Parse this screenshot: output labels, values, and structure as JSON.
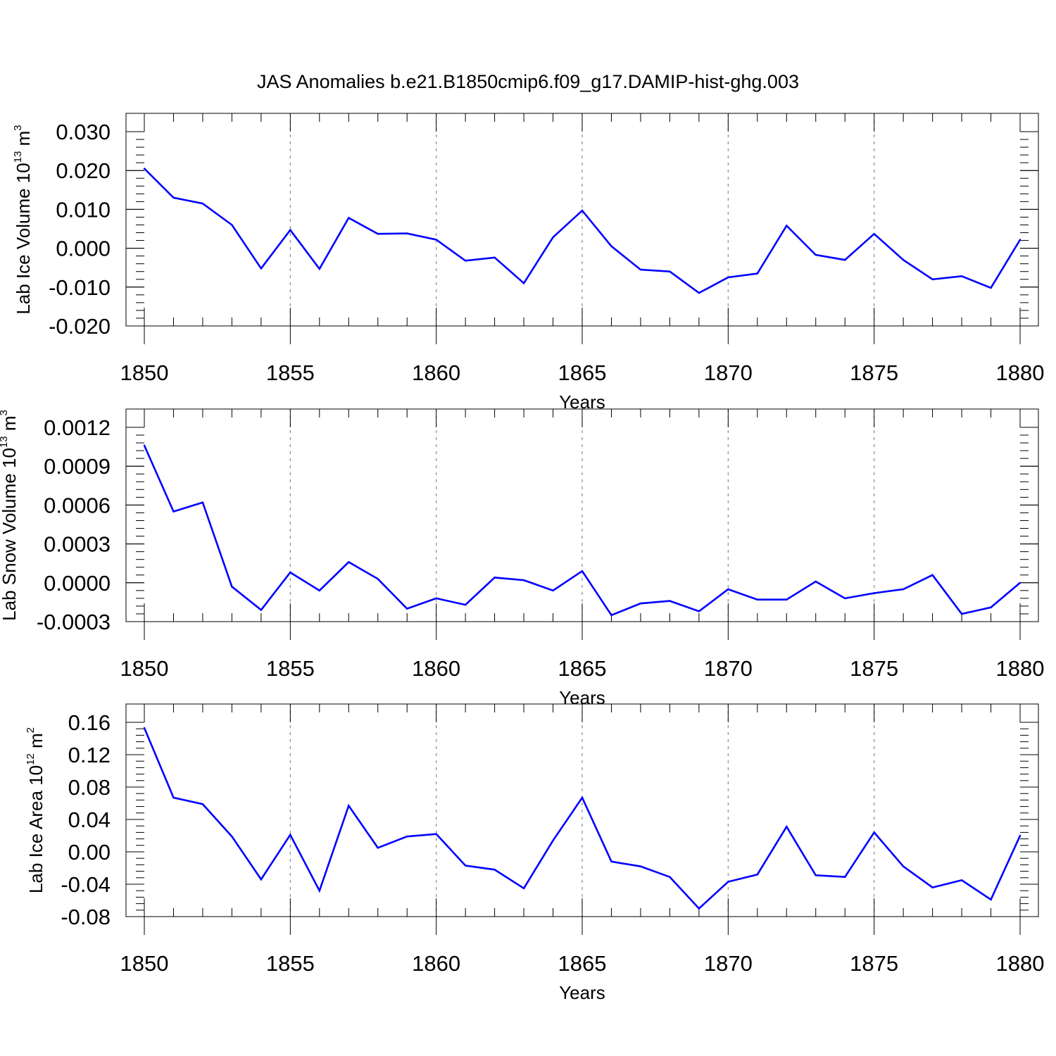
{
  "title": "JAS Anomalies b.e21.B1850cmip6.f09_g17.DAMIP-hist-ghg.003",
  "line_color": "#0000ff",
  "grid_color": "#888888",
  "chart_data": [
    {
      "type": "line",
      "ylabel": "Lab Ice Volume 10",
      "ylabel_unit_base": "m",
      "ylabel_exp": "13",
      "ylabel_unit_exp": "3",
      "xlabel": "Years",
      "xlim": [
        1850,
        1880
      ],
      "ylim": [
        -0.02,
        0.03
      ],
      "x_ticks": [
        1850,
        1855,
        1860,
        1865,
        1870,
        1875,
        1880
      ],
      "x_tick_labels": [
        "1850",
        "1855",
        "1860",
        "1865",
        "1870",
        "1875",
        "1880"
      ],
      "y_ticks": [
        -0.02,
        -0.01,
        0.0,
        0.01,
        0.02,
        0.03
      ],
      "y_tick_labels": [
        "-0.020",
        "-0.010",
        "0.000",
        "0.010",
        "0.020",
        "0.030"
      ],
      "grid": "vertical dashed at major x ticks",
      "x": [
        1850,
        1851,
        1852,
        1853,
        1854,
        1855,
        1856,
        1857,
        1858,
        1859,
        1860,
        1861,
        1862,
        1863,
        1864,
        1865,
        1866,
        1867,
        1868,
        1869,
        1870,
        1871,
        1872,
        1873,
        1874,
        1875,
        1876,
        1877,
        1878,
        1879,
        1880
      ],
      "values": [
        0.0205,
        0.013,
        0.0115,
        0.006,
        -0.0052,
        0.0047,
        -0.0053,
        0.0078,
        0.0037,
        0.0038,
        0.0022,
        -0.0032,
        -0.0024,
        -0.009,
        0.0028,
        0.0097,
        0.0005,
        -0.0055,
        -0.006,
        -0.0115,
        -0.0075,
        -0.0065,
        0.0058,
        -0.0017,
        -0.003,
        0.0037,
        -0.003,
        -0.008,
        -0.0072,
        -0.0102,
        0.0022
      ]
    },
    {
      "type": "line",
      "ylabel": "Lab Snow Volume 10",
      "ylabel_unit_base": "m",
      "ylabel_exp": "13",
      "ylabel_unit_exp": "3",
      "xlabel": "Years",
      "xlim": [
        1850,
        1880
      ],
      "ylim": [
        -0.0003,
        0.0012
      ],
      "x_ticks": [
        1850,
        1855,
        1860,
        1865,
        1870,
        1875,
        1880
      ],
      "x_tick_labels": [
        "1850",
        "1855",
        "1860",
        "1865",
        "1870",
        "1875",
        "1880"
      ],
      "y_ticks": [
        -0.0003,
        0.0,
        0.0003,
        0.0006,
        0.0009,
        0.0012
      ],
      "y_tick_labels": [
        "-0.0003",
        "0.0000",
        "0.0003",
        "0.0006",
        "0.0009",
        "0.0012"
      ],
      "grid": "vertical dashed at major x ticks",
      "x": [
        1850,
        1851,
        1852,
        1853,
        1854,
        1855,
        1856,
        1857,
        1858,
        1859,
        1860,
        1861,
        1862,
        1863,
        1864,
        1865,
        1866,
        1867,
        1868,
        1869,
        1870,
        1871,
        1872,
        1873,
        1874,
        1875,
        1876,
        1877,
        1878,
        1879,
        1880
      ],
      "values": [
        0.00106,
        0.00055,
        0.00062,
        -3e-05,
        -0.00021,
        8e-05,
        -6e-05,
        0.00016,
        3e-05,
        -0.0002,
        -0.00012,
        -0.00017,
        4e-05,
        2e-05,
        -6e-05,
        9e-05,
        -0.00025,
        -0.00016,
        -0.00014,
        -0.00022,
        -5e-05,
        -0.00013,
        -0.00013,
        1e-05,
        -0.00012,
        -8e-05,
        -5e-05,
        6e-05,
        -0.00024,
        -0.00019,
        0.0
      ]
    },
    {
      "type": "line",
      "ylabel": "Lab Ice Area 10",
      "ylabel_unit_base": "m",
      "ylabel_exp": "12",
      "ylabel_unit_exp": "2",
      "xlabel": "Years",
      "xlim": [
        1850,
        1880
      ],
      "ylim": [
        -0.08,
        0.16
      ],
      "x_ticks": [
        1850,
        1855,
        1860,
        1865,
        1870,
        1875,
        1880
      ],
      "x_tick_labels": [
        "1850",
        "1855",
        "1860",
        "1865",
        "1870",
        "1875",
        "1880"
      ],
      "y_ticks": [
        -0.08,
        -0.04,
        0.0,
        0.04,
        0.08,
        0.12,
        0.16
      ],
      "y_tick_labels": [
        "-0.08",
        "-0.04",
        "0.00",
        "0.04",
        "0.08",
        "0.12",
        "0.16"
      ],
      "grid": "vertical dashed at major x ticks",
      "x": [
        1850,
        1851,
        1852,
        1853,
        1854,
        1855,
        1856,
        1857,
        1858,
        1859,
        1860,
        1861,
        1862,
        1863,
        1864,
        1865,
        1866,
        1867,
        1868,
        1869,
        1870,
        1871,
        1872,
        1873,
        1874,
        1875,
        1876,
        1877,
        1878,
        1879,
        1880
      ],
      "values": [
        0.153,
        0.067,
        0.059,
        0.019,
        -0.034,
        0.021,
        -0.048,
        0.057,
        0.005,
        0.019,
        0.022,
        -0.017,
        -0.022,
        -0.045,
        0.014,
        0.067,
        -0.012,
        -0.018,
        -0.031,
        -0.07,
        -0.037,
        -0.028,
        0.031,
        -0.029,
        -0.031,
        0.024,
        -0.018,
        -0.044,
        -0.035,
        -0.059,
        0.02
      ]
    }
  ]
}
